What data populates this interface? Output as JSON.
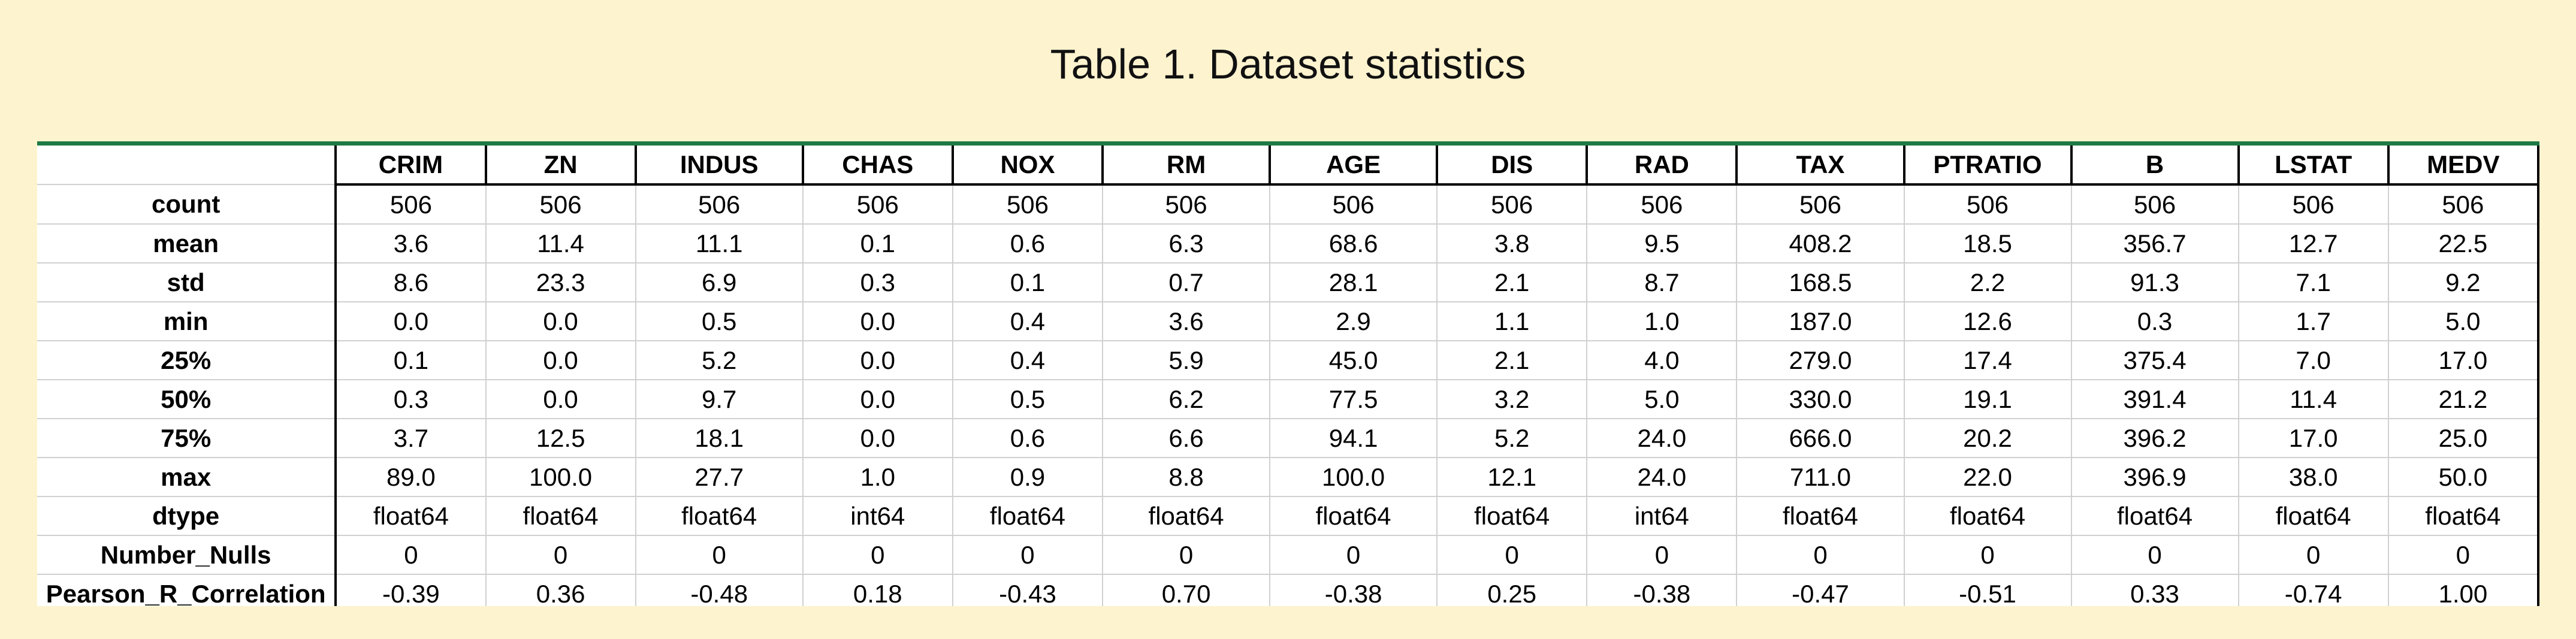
{
  "title": "Table 1. Dataset statistics",
  "table": {
    "columns": [
      "CRIM",
      "ZN",
      "INDUS",
      "CHAS",
      "NOX",
      "RM",
      "AGE",
      "DIS",
      "RAD",
      "TAX",
      "PTRATIO",
      "B",
      "LSTAT",
      "MEDV"
    ],
    "rows": [
      {
        "label": "count",
        "values": [
          "506",
          "506",
          "506",
          "506",
          "506",
          "506",
          "506",
          "506",
          "506",
          "506",
          "506",
          "506",
          "506",
          "506"
        ]
      },
      {
        "label": "mean",
        "values": [
          "3.6",
          "11.4",
          "11.1",
          "0.1",
          "0.6",
          "6.3",
          "68.6",
          "3.8",
          "9.5",
          "408.2",
          "18.5",
          "356.7",
          "12.7",
          "22.5"
        ]
      },
      {
        "label": "std",
        "values": [
          "8.6",
          "23.3",
          "6.9",
          "0.3",
          "0.1",
          "0.7",
          "28.1",
          "2.1",
          "8.7",
          "168.5",
          "2.2",
          "91.3",
          "7.1",
          "9.2"
        ]
      },
      {
        "label": "min",
        "values": [
          "0.0",
          "0.0",
          "0.5",
          "0.0",
          "0.4",
          "3.6",
          "2.9",
          "1.1",
          "1.0",
          "187.0",
          "12.6",
          "0.3",
          "1.7",
          "5.0"
        ]
      },
      {
        "label": "25%",
        "values": [
          "0.1",
          "0.0",
          "5.2",
          "0.0",
          "0.4",
          "5.9",
          "45.0",
          "2.1",
          "4.0",
          "279.0",
          "17.4",
          "375.4",
          "7.0",
          "17.0"
        ]
      },
      {
        "label": "50%",
        "values": [
          "0.3",
          "0.0",
          "9.7",
          "0.0",
          "0.5",
          "6.2",
          "77.5",
          "3.2",
          "5.0",
          "330.0",
          "19.1",
          "391.4",
          "11.4",
          "21.2"
        ]
      },
      {
        "label": "75%",
        "values": [
          "3.7",
          "12.5",
          "18.1",
          "0.0",
          "0.6",
          "6.6",
          "94.1",
          "5.2",
          "24.0",
          "666.0",
          "20.2",
          "396.2",
          "17.0",
          "25.0"
        ]
      },
      {
        "label": "max",
        "values": [
          "89.0",
          "100.0",
          "27.7",
          "1.0",
          "0.9",
          "8.8",
          "100.0",
          "12.1",
          "24.0",
          "711.0",
          "22.0",
          "396.9",
          "38.0",
          "50.0"
        ]
      },
      {
        "label": "dtype",
        "values": [
          "float64",
          "float64",
          "float64",
          "int64",
          "float64",
          "float64",
          "float64",
          "float64",
          "int64",
          "float64",
          "float64",
          "float64",
          "float64",
          "float64"
        ]
      },
      {
        "label": "Number_Nulls",
        "values": [
          "0",
          "0",
          "0",
          "0",
          "0",
          "0",
          "0",
          "0",
          "0",
          "0",
          "0",
          "0",
          "0",
          "0"
        ]
      },
      {
        "label": "Pearson_R_Correlation",
        "values": [
          "-0.39",
          "0.36",
          "-0.48",
          "0.18",
          "-0.43",
          "0.70",
          "-0.38",
          "0.25",
          "-0.38",
          "-0.47",
          "-0.51",
          "0.33",
          "-0.74",
          "1.00"
        ]
      }
    ]
  }
}
